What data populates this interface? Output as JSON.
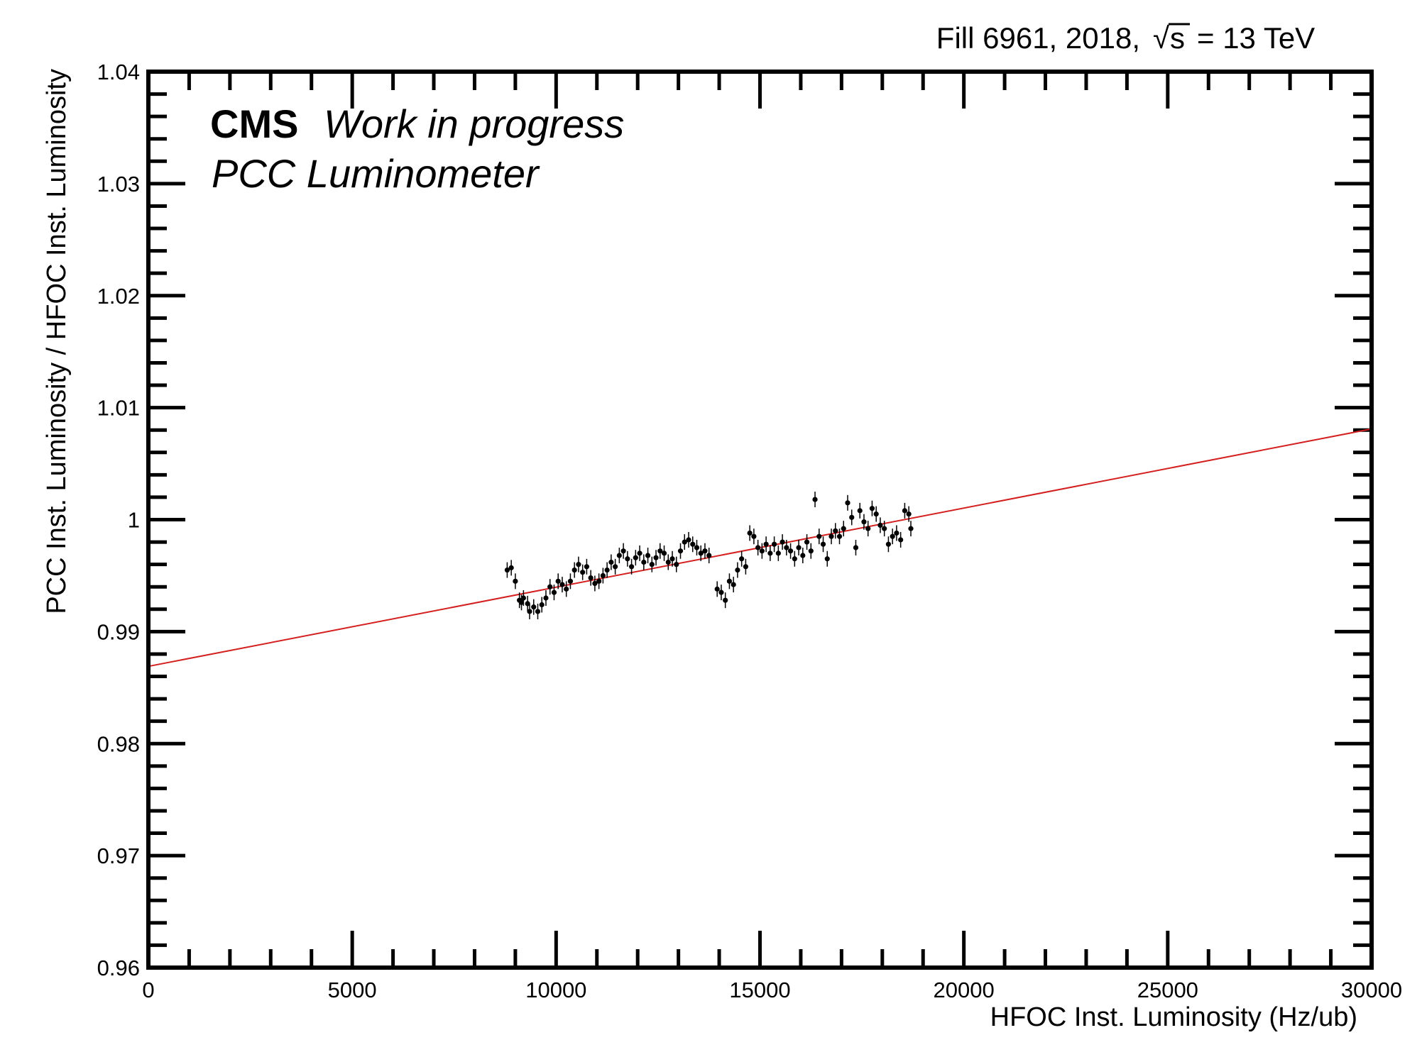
{
  "header": {
    "fill_text": "Fill 6961, 2018,",
    "sqrt_symbol": "√",
    "s_text": "s",
    "energy_text": "= 13 TeV"
  },
  "cms_label": {
    "experiment": "CMS",
    "status": "Work in progress",
    "detector": "PCC Luminometer"
  },
  "colors": {
    "fit_line": "#d42020",
    "points": "#000000",
    "frame": "#000000"
  },
  "chart_data": {
    "type": "scatter",
    "xlabel": "HFOC Inst. Luminosity (Hz/ub)",
    "ylabel": "PCC Inst. Luminosity  / HFOC Inst. Luminosity",
    "xlim": [
      0,
      30000
    ],
    "ylim": [
      0.96,
      1.04
    ],
    "x_ticks": [
      "0",
      "5000",
      "10000",
      "15000",
      "20000",
      "25000",
      "30000"
    ],
    "y_ticks": [
      "0.96",
      "0.97",
      "0.98",
      "0.99",
      "1",
      "1.01",
      "1.02",
      "1.03",
      "1.04"
    ],
    "grid": false,
    "fit_line": {
      "x": [
        0,
        30000
      ],
      "y": [
        0.9869,
        1.0081
      ]
    },
    "series": [
      {
        "points": [
          [
            8800,
            0.9955
          ],
          [
            8900,
            0.9957
          ],
          [
            9000,
            0.9945
          ],
          [
            9100,
            0.9928
          ],
          [
            9150,
            0.9926
          ],
          [
            9200,
            0.993
          ],
          [
            9300,
            0.9925
          ],
          [
            9350,
            0.9918
          ],
          [
            9450,
            0.9922
          ],
          [
            9550,
            0.9918
          ],
          [
            9650,
            0.9924
          ],
          [
            9750,
            0.993
          ],
          [
            9850,
            0.994
          ],
          [
            9950,
            0.9935
          ],
          [
            10050,
            0.9945
          ],
          [
            10150,
            0.9942
          ],
          [
            10250,
            0.9938
          ],
          [
            10350,
            0.9945
          ],
          [
            10450,
            0.9955
          ],
          [
            10550,
            0.996
          ],
          [
            10650,
            0.9953
          ],
          [
            10750,
            0.9958
          ],
          [
            10850,
            0.9948
          ],
          [
            10950,
            0.9943
          ],
          [
            11050,
            0.9945
          ],
          [
            11150,
            0.995
          ],
          [
            11250,
            0.9955
          ],
          [
            11350,
            0.9962
          ],
          [
            11450,
            0.9958
          ],
          [
            11550,
            0.9968
          ],
          [
            11650,
            0.9972
          ],
          [
            11750,
            0.9965
          ],
          [
            11850,
            0.9958
          ],
          [
            11950,
            0.9966
          ],
          [
            12050,
            0.997
          ],
          [
            12150,
            0.9962
          ],
          [
            12250,
            0.9968
          ],
          [
            12350,
            0.996
          ],
          [
            12450,
            0.9966
          ],
          [
            12550,
            0.9972
          ],
          [
            12650,
            0.997
          ],
          [
            12750,
            0.9962
          ],
          [
            12850,
            0.9965
          ],
          [
            12950,
            0.996
          ],
          [
            13050,
            0.9972
          ],
          [
            13150,
            0.998
          ],
          [
            13250,
            0.9982
          ],
          [
            13350,
            0.9978
          ],
          [
            13450,
            0.9975
          ],
          [
            13550,
            0.997
          ],
          [
            13650,
            0.9972
          ],
          [
            13750,
            0.9968
          ],
          [
            13950,
            0.9938
          ],
          [
            14050,
            0.9935
          ],
          [
            14150,
            0.9928
          ],
          [
            14250,
            0.9945
          ],
          [
            14350,
            0.9942
          ],
          [
            14450,
            0.9955
          ],
          [
            14550,
            0.9965
          ],
          [
            14650,
            0.9958
          ],
          [
            14750,
            0.9988
          ],
          [
            14850,
            0.9985
          ],
          [
            14950,
            0.9975
          ],
          [
            15050,
            0.9972
          ],
          [
            15150,
            0.9978
          ],
          [
            15250,
            0.997
          ],
          [
            15350,
            0.9978
          ],
          [
            15450,
            0.997
          ],
          [
            15550,
            0.998
          ],
          [
            15650,
            0.9975
          ],
          [
            15750,
            0.9972
          ],
          [
            15850,
            0.9965
          ],
          [
            15950,
            0.9975
          ],
          [
            16050,
            0.9968
          ],
          [
            16150,
            0.998
          ],
          [
            16250,
            0.9972
          ],
          [
            16350,
            1.0018
          ],
          [
            16450,
            0.9985
          ],
          [
            16550,
            0.9978
          ],
          [
            16650,
            0.9965
          ],
          [
            16750,
            0.9985
          ],
          [
            16850,
            0.999
          ],
          [
            16950,
            0.9985
          ],
          [
            17050,
            0.9992
          ],
          [
            17150,
            1.0015
          ],
          [
            17250,
            1.0002
          ],
          [
            17350,
            0.9975
          ],
          [
            17450,
            1.0008
          ],
          [
            17550,
            0.9998
          ],
          [
            17650,
            0.9992
          ],
          [
            17750,
            1.001
          ],
          [
            17850,
            1.0005
          ],
          [
            17950,
            0.9995
          ],
          [
            18050,
            0.9992
          ],
          [
            18150,
            0.9978
          ],
          [
            18250,
            0.9985
          ],
          [
            18350,
            0.9988
          ],
          [
            18450,
            0.9982
          ],
          [
            18550,
            1.0008
          ],
          [
            18650,
            1.0005
          ],
          [
            18700,
            0.9992
          ]
        ]
      }
    ]
  }
}
